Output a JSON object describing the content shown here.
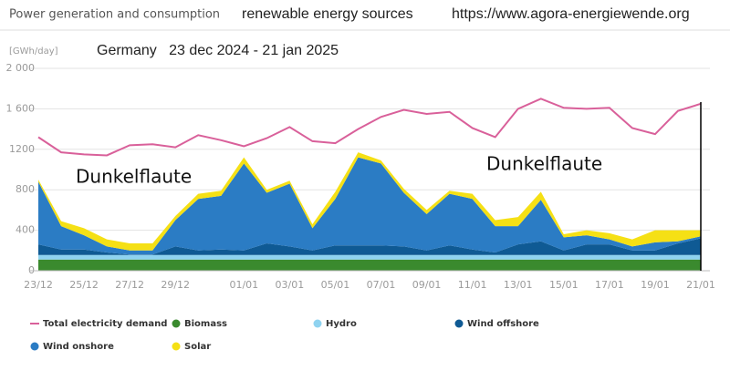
{
  "chart_data": {
    "type": "area",
    "header": "Power generation and consumption",
    "title": "renewable energy sources",
    "source": "https://www.agora-energiewende.org",
    "y_label": "[GWh/day]",
    "subtitle": "Germany   23 dec 2024 - 21 jan 2025",
    "annotations": [
      "Dunkelflaute",
      "Dunkelflaute"
    ],
    "categories": [
      "23/12",
      null,
      "25/12",
      null,
      "27/12",
      null,
      "29/12",
      null,
      null,
      "01/01",
      null,
      "03/01",
      null,
      "05/01",
      null,
      "07/01",
      null,
      "09/01",
      null,
      "11/01",
      null,
      "13/01",
      null,
      "15/01",
      null,
      "17/01",
      null,
      "19/01",
      null,
      "21/01"
    ],
    "ylim": [
      0,
      2000
    ],
    "yticks": [
      0,
      {
        "value": 400,
        "label": "400"
      },
      {
        "value": 800,
        "label": "800"
      },
      {
        "value": 1200,
        "label": "1200"
      },
      {
        "value": 1600,
        "label": "1 600"
      },
      {
        "value": 2000,
        "label": "2 000"
      }
    ],
    "grid": true,
    "stacked": true,
    "series": [
      {
        "name": "Total electricity demand",
        "type": "line",
        "color": "#d9609a",
        "values": [
          1320,
          1170,
          1150,
          1140,
          1240,
          1250,
          1220,
          1340,
          1290,
          1230,
          1310,
          1420,
          1280,
          1260,
          1400,
          1520,
          1590,
          1550,
          1570,
          1410,
          1320,
          1600,
          1700,
          1610,
          1600,
          1610,
          1410,
          1350,
          1580,
          1650
        ]
      },
      {
        "name": "Biomass",
        "color": "#3a8a2e",
        "values": [
          110,
          110,
          110,
          110,
          110,
          110,
          110,
          110,
          110,
          110,
          110,
          110,
          110,
          110,
          110,
          110,
          110,
          110,
          110,
          110,
          110,
          110,
          110,
          110,
          110,
          110,
          110,
          110,
          110,
          110
        ]
      },
      {
        "name": "Hydro",
        "color": "#8fd3f0",
        "values": [
          45,
          45,
          45,
          45,
          45,
          45,
          45,
          45,
          45,
          45,
          45,
          45,
          45,
          45,
          45,
          45,
          45,
          45,
          45,
          45,
          45,
          45,
          45,
          45,
          45,
          45,
          45,
          45,
          45,
          45
        ]
      },
      {
        "name": "Wind offshore",
        "color": "#0f5a94",
        "values": [
          105,
          55,
          55,
          25,
          5,
          5,
          85,
          45,
          55,
          45,
          115,
          85,
          45,
          95,
          95,
          95,
          85,
          45,
          95,
          55,
          25,
          105,
          135,
          45,
          105,
          105,
          45,
          45,
          115,
          165
        ]
      },
      {
        "name": "Wind onshore",
        "color": "#2b7cc4",
        "values": [
          620,
          230,
          140,
          60,
          40,
          40,
          260,
          510,
          530,
          860,
          500,
          620,
          220,
          460,
          870,
          810,
          530,
          360,
          510,
          500,
          260,
          180,
          410,
          130,
          90,
          50,
          40,
          80,
          20,
          20
        ]
      },
      {
        "name": "Solar",
        "color": "#f5e015",
        "values": [
          20,
          50,
          70,
          70,
          70,
          70,
          40,
          50,
          50,
          60,
          30,
          30,
          40,
          70,
          50,
          30,
          40,
          40,
          30,
          50,
          60,
          90,
          80,
          30,
          50,
          60,
          70,
          120,
          110,
          60
        ]
      }
    ]
  }
}
